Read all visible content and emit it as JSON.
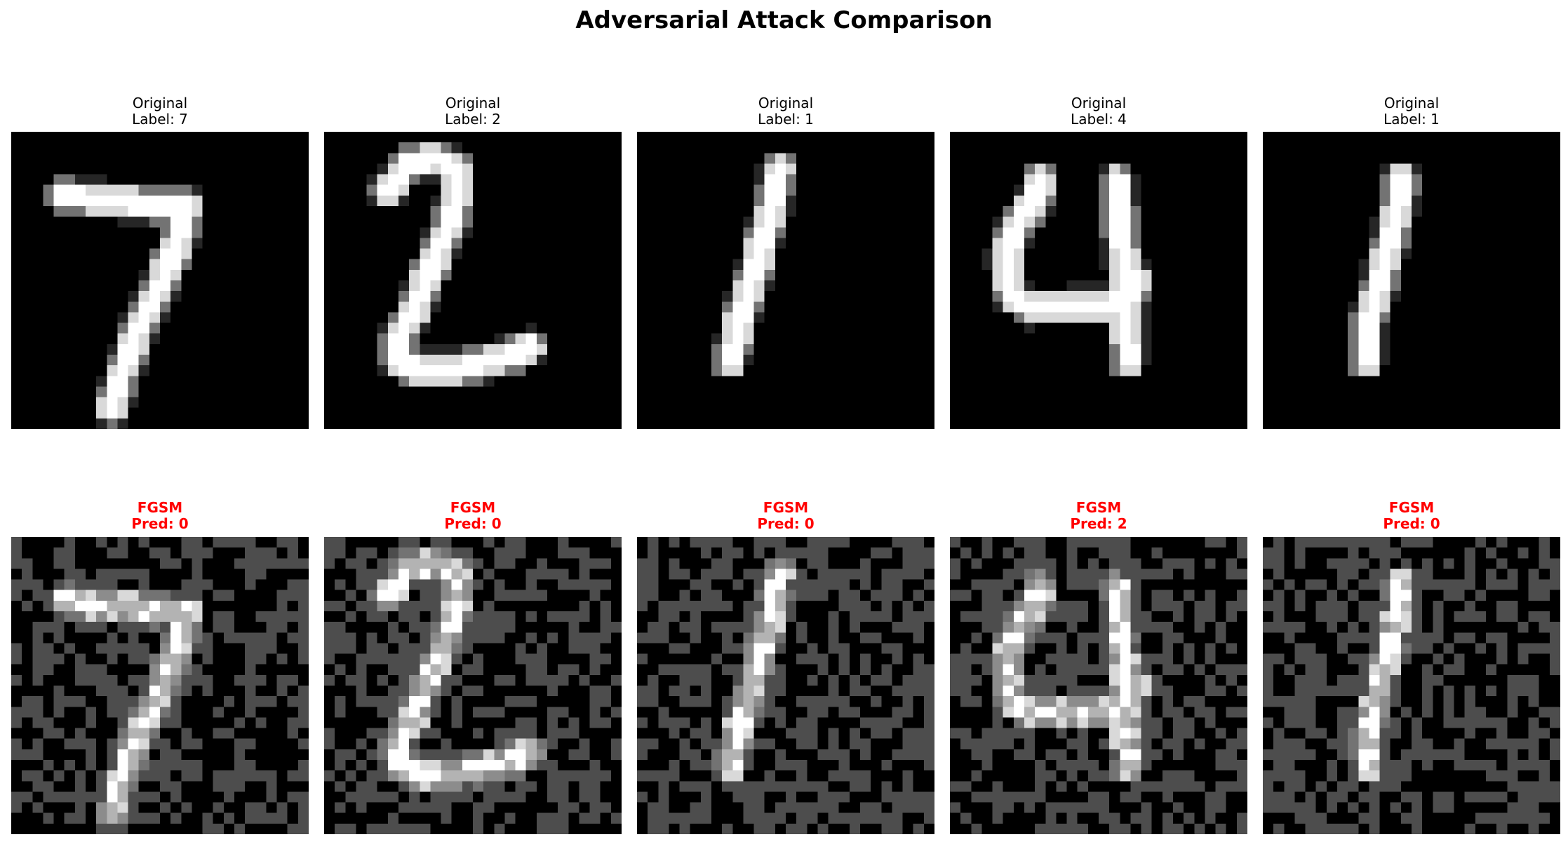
{
  "figure": {
    "title": "Adversarial Attack Comparison"
  },
  "original_row": [
    {
      "line1": "Original",
      "line2": "Label: 7",
      "digit": "7"
    },
    {
      "line1": "Original",
      "line2": "Label: 2",
      "digit": "2"
    },
    {
      "line1": "Original",
      "line2": "Label: 1",
      "digit": "1a"
    },
    {
      "line1": "Original",
      "line2": "Label: 4",
      "digit": "4"
    },
    {
      "line1": "Original",
      "line2": "Label: 1",
      "digit": "1b"
    }
  ],
  "adversarial_row": [
    {
      "line1": "FGSM",
      "line2": "Pred: 0",
      "digit": "7"
    },
    {
      "line1": "FGSM",
      "line2": "Pred: 0",
      "digit": "2"
    },
    {
      "line1": "FGSM",
      "line2": "Pred: 0",
      "digit": "1a"
    },
    {
      "line1": "FGSM",
      "line2": "Pred: 2",
      "digit": "4"
    },
    {
      "line1": "FGSM",
      "line2": "Pred: 0",
      "digit": "1b"
    }
  ],
  "colors": {
    "adversarial_title": "#ff0000",
    "background": "#000000",
    "noise": "#4c4c4c"
  }
}
